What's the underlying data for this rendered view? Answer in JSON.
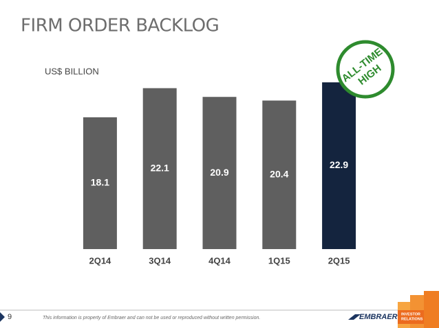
{
  "chart_data": {
    "type": "bar",
    "title": "FIRM ORDER BACKLOG",
    "subtitle": "US$ BILLION",
    "categories": [
      "2Q14",
      "3Q14",
      "4Q14",
      "1Q15",
      "2Q15"
    ],
    "values": [
      18.1,
      22.1,
      20.9,
      20.4,
      22.9
    ],
    "colors": [
      "#5f5f5f",
      "#5f5f5f",
      "#5f5f5f",
      "#5f5f5f",
      "#14243e"
    ],
    "annotation": [
      "ALL-TIME",
      "HIGH"
    ]
  },
  "footer": {
    "page_number": "9",
    "disclaimer": "This information is property of Embraer and can not be used or reproduced without written permission.",
    "logo": "EMBRAER",
    "logo_tag": [
      "INVESTOR",
      "RELATIONS"
    ]
  }
}
